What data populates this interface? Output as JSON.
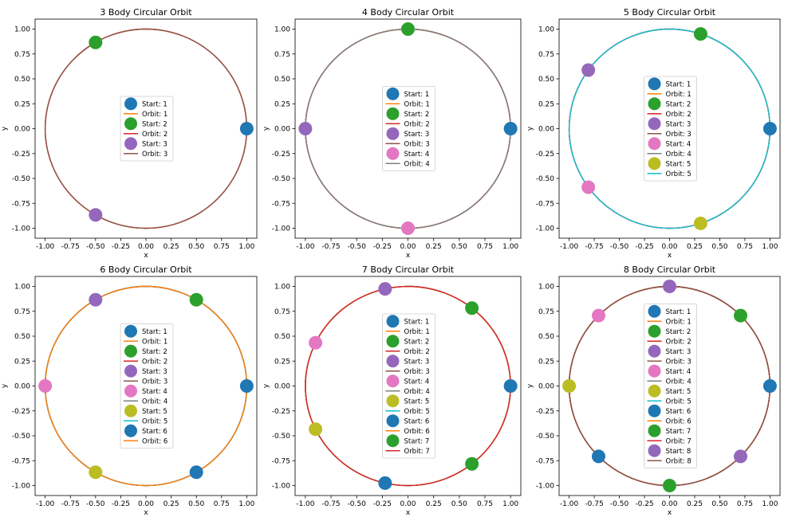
{
  "palette": [
    "#1f77b4",
    "#ff7f0e",
    "#2ca02c",
    "#d62728",
    "#9467bd",
    "#8c564b",
    "#e377c2",
    "#7f7f7f",
    "#bcbd22",
    "#17becf"
  ],
  "chart_data": [
    {
      "type": "scatter",
      "title": "3 Body Circular Orbit",
      "xlabel": "x",
      "ylabel": "y",
      "xlim": [
        -1.1,
        1.1
      ],
      "ylim": [
        -1.1,
        1.1
      ],
      "xticks": [
        "-1.00",
        "-0.75",
        "-0.50",
        "-0.25",
        "0.00",
        "0.25",
        "0.50",
        "0.75",
        "1.00"
      ],
      "yticks": [
        "-1.00",
        "-0.75",
        "-0.50",
        "-0.25",
        "0.00",
        "0.25",
        "0.50",
        "0.75",
        "1.00"
      ],
      "legend_position": "center",
      "grid": false,
      "bodies": [
        {
          "start_label": "Start: 1",
          "orbit_label": "Orbit: 1",
          "start": [
            1.0,
            0.0
          ],
          "start_color": "#1f77b4",
          "orbit_color": "#ff7f0e"
        },
        {
          "start_label": "Start: 2",
          "orbit_label": "Orbit: 2",
          "start": [
            -0.5,
            0.866
          ],
          "start_color": "#2ca02c",
          "orbit_color": "#d62728"
        },
        {
          "start_label": "Start: 3",
          "orbit_label": "Orbit: 3",
          "start": [
            -0.5,
            -0.866
          ],
          "start_color": "#9467bd",
          "orbit_color": "#8c564b"
        }
      ]
    },
    {
      "type": "scatter",
      "title": "4 Body Circular Orbit",
      "xlabel": "x",
      "ylabel": "y",
      "xlim": [
        -1.1,
        1.1
      ],
      "ylim": [
        -1.1,
        1.1
      ],
      "xticks": [
        "-1.00",
        "-0.75",
        "-0.50",
        "-0.25",
        "0.00",
        "0.25",
        "0.50",
        "0.75",
        "1.00"
      ],
      "yticks": [
        "-1.00",
        "-0.75",
        "-0.50",
        "-0.25",
        "0.00",
        "0.25",
        "0.50",
        "0.75",
        "1.00"
      ],
      "legend_position": "center",
      "grid": false,
      "bodies": [
        {
          "start_label": "Start: 1",
          "orbit_label": "Orbit: 1",
          "start": [
            1.0,
            0.0
          ],
          "start_color": "#1f77b4",
          "orbit_color": "#ff7f0e"
        },
        {
          "start_label": "Start: 2",
          "orbit_label": "Orbit: 2",
          "start": [
            0.0,
            1.0
          ],
          "start_color": "#2ca02c",
          "orbit_color": "#d62728"
        },
        {
          "start_label": "Start: 3",
          "orbit_label": "Orbit: 3",
          "start": [
            -1.0,
            0.0
          ],
          "start_color": "#9467bd",
          "orbit_color": "#8c564b"
        },
        {
          "start_label": "Start: 4",
          "orbit_label": "Orbit: 4",
          "start": [
            0.0,
            -1.0
          ],
          "start_color": "#e377c2",
          "orbit_color": "#7f7f7f"
        }
      ]
    },
    {
      "type": "scatter",
      "title": "5 Body Circular Orbit",
      "xlabel": "x",
      "ylabel": "y",
      "xlim": [
        -1.1,
        1.1
      ],
      "ylim": [
        -1.1,
        1.1
      ],
      "xticks": [
        "-1.00",
        "-0.75",
        "-0.50",
        "-0.25",
        "0.00",
        "0.25",
        "0.50",
        "0.75",
        "1.00"
      ],
      "yticks": [
        "-1.00",
        "-0.75",
        "-0.50",
        "-0.25",
        "0.00",
        "0.25",
        "0.50",
        "0.75",
        "1.00"
      ],
      "legend_position": "center",
      "grid": false,
      "bodies": [
        {
          "start_label": "Start: 1",
          "orbit_label": "Orbit: 1",
          "start": [
            1.0,
            0.0
          ],
          "start_color": "#1f77b4",
          "orbit_color": "#ff7f0e"
        },
        {
          "start_label": "Start: 2",
          "orbit_label": "Orbit: 2",
          "start": [
            0.309,
            0.951
          ],
          "start_color": "#2ca02c",
          "orbit_color": "#d62728"
        },
        {
          "start_label": "Start: 3",
          "orbit_label": "Orbit: 3",
          "start": [
            -0.809,
            0.588
          ],
          "start_color": "#9467bd",
          "orbit_color": "#8c564b"
        },
        {
          "start_label": "Start: 4",
          "orbit_label": "Orbit: 4",
          "start": [
            -0.809,
            -0.588
          ],
          "start_color": "#e377c2",
          "orbit_color": "#7f7f7f"
        },
        {
          "start_label": "Start: 5",
          "orbit_label": "Orbit: 5",
          "start": [
            0.309,
            -0.951
          ],
          "start_color": "#bcbd22",
          "orbit_color": "#17becf"
        }
      ]
    },
    {
      "type": "scatter",
      "title": "6 Body Circular Orbit",
      "xlabel": "x",
      "ylabel": "y",
      "xlim": [
        -1.1,
        1.1
      ],
      "ylim": [
        -1.1,
        1.1
      ],
      "xticks": [
        "-1.00",
        "-0.75",
        "-0.50",
        "-0.25",
        "0.00",
        "0.25",
        "0.50",
        "0.75",
        "1.00"
      ],
      "yticks": [
        "-1.00",
        "-0.75",
        "-0.50",
        "-0.25",
        "0.00",
        "0.25",
        "0.50",
        "0.75",
        "1.00"
      ],
      "legend_position": "center",
      "grid": false,
      "bodies": [
        {
          "start_label": "Start: 1",
          "orbit_label": "Orbit: 1",
          "start": [
            1.0,
            0.0
          ],
          "start_color": "#1f77b4",
          "orbit_color": "#ff7f0e"
        },
        {
          "start_label": "Start: 2",
          "orbit_label": "Orbit: 2",
          "start": [
            0.5,
            0.866
          ],
          "start_color": "#2ca02c",
          "orbit_color": "#d62728"
        },
        {
          "start_label": "Start: 3",
          "orbit_label": "Orbit: 3",
          "start": [
            -0.5,
            0.866
          ],
          "start_color": "#9467bd",
          "orbit_color": "#8c564b"
        },
        {
          "start_label": "Start: 4",
          "orbit_label": "Orbit: 4",
          "start": [
            -1.0,
            0.0
          ],
          "start_color": "#e377c2",
          "orbit_color": "#7f7f7f"
        },
        {
          "start_label": "Start: 5",
          "orbit_label": "Orbit: 5",
          "start": [
            -0.5,
            -0.866
          ],
          "start_color": "#bcbd22",
          "orbit_color": "#17becf"
        },
        {
          "start_label": "Start: 6",
          "orbit_label": "Orbit: 6",
          "start": [
            0.5,
            -0.866
          ],
          "start_color": "#1f77b4",
          "orbit_color": "#ff7f0e"
        }
      ]
    },
    {
      "type": "scatter",
      "title": "7 Body Circular Orbit",
      "xlabel": "x",
      "ylabel": "y",
      "xlim": [
        -1.1,
        1.1
      ],
      "ylim": [
        -1.1,
        1.1
      ],
      "xticks": [
        "-1.00",
        "-0.75",
        "-0.50",
        "-0.25",
        "0.00",
        "0.25",
        "0.50",
        "0.75",
        "1.00"
      ],
      "yticks": [
        "-1.00",
        "-0.75",
        "-0.50",
        "-0.25",
        "0.00",
        "0.25",
        "0.50",
        "0.75",
        "1.00"
      ],
      "legend_position": "center",
      "grid": false,
      "bodies": [
        {
          "start_label": "Start: 1",
          "orbit_label": "Orbit: 1",
          "start": [
            1.0,
            0.0
          ],
          "start_color": "#1f77b4",
          "orbit_color": "#ff7f0e"
        },
        {
          "start_label": "Start: 2",
          "orbit_label": "Orbit: 2",
          "start": [
            0.623,
            0.782
          ],
          "start_color": "#2ca02c",
          "orbit_color": "#d62728"
        },
        {
          "start_label": "Start: 3",
          "orbit_label": "Orbit: 3",
          "start": [
            -0.223,
            0.975
          ],
          "start_color": "#9467bd",
          "orbit_color": "#8c564b"
        },
        {
          "start_label": "Start: 4",
          "orbit_label": "Orbit: 4",
          "start": [
            -0.901,
            0.434
          ],
          "start_color": "#e377c2",
          "orbit_color": "#7f7f7f"
        },
        {
          "start_label": "Start: 5",
          "orbit_label": "Orbit: 5",
          "start": [
            -0.901,
            -0.434
          ],
          "start_color": "#bcbd22",
          "orbit_color": "#17becf"
        },
        {
          "start_label": "Start: 6",
          "orbit_label": "Orbit: 6",
          "start": [
            -0.223,
            -0.975
          ],
          "start_color": "#1f77b4",
          "orbit_color": "#ff7f0e"
        },
        {
          "start_label": "Start: 7",
          "orbit_label": "Orbit: 7",
          "start": [
            0.623,
            -0.782
          ],
          "start_color": "#2ca02c",
          "orbit_color": "#d62728"
        }
      ]
    },
    {
      "type": "scatter",
      "title": "8 Body Circular Orbit",
      "xlabel": "x",
      "ylabel": "y",
      "xlim": [
        -1.1,
        1.1
      ],
      "ylim": [
        -1.1,
        1.1
      ],
      "xticks": [
        "-1.00",
        "-0.75",
        "-0.50",
        "-0.25",
        "0.00",
        "0.25",
        "0.50",
        "0.75",
        "1.00"
      ],
      "yticks": [
        "-1.00",
        "-0.75",
        "-0.50",
        "-0.25",
        "0.00",
        "0.25",
        "0.50",
        "0.75",
        "1.00"
      ],
      "legend_position": "center",
      "grid": false,
      "bodies": [
        {
          "start_label": "Start: 1",
          "orbit_label": "Orbit: 1",
          "start": [
            1.0,
            0.0
          ],
          "start_color": "#1f77b4",
          "orbit_color": "#ff7f0e"
        },
        {
          "start_label": "Start: 2",
          "orbit_label": "Orbit: 2",
          "start": [
            0.707,
            0.707
          ],
          "start_color": "#2ca02c",
          "orbit_color": "#d62728"
        },
        {
          "start_label": "Start: 3",
          "orbit_label": "Orbit: 3",
          "start": [
            0.0,
            1.0
          ],
          "start_color": "#9467bd",
          "orbit_color": "#8c564b"
        },
        {
          "start_label": "Start: 4",
          "orbit_label": "Orbit: 4",
          "start": [
            -0.707,
            0.707
          ],
          "start_color": "#e377c2",
          "orbit_color": "#7f7f7f"
        },
        {
          "start_label": "Start: 5",
          "orbit_label": "Orbit: 5",
          "start": [
            -1.0,
            0.0
          ],
          "start_color": "#bcbd22",
          "orbit_color": "#17becf"
        },
        {
          "start_label": "Start: 6",
          "orbit_label": "Orbit: 6",
          "start": [
            -0.707,
            -0.707
          ],
          "start_color": "#1f77b4",
          "orbit_color": "#ff7f0e"
        },
        {
          "start_label": "Start: 7",
          "orbit_label": "Orbit: 7",
          "start": [
            0.0,
            -1.0
          ],
          "start_color": "#2ca02c",
          "orbit_color": "#d62728"
        },
        {
          "start_label": "Start: 8",
          "orbit_label": "Orbit: 8",
          "start": [
            0.707,
            -0.707
          ],
          "start_color": "#9467bd",
          "orbit_color": "#8c564b"
        }
      ]
    }
  ]
}
